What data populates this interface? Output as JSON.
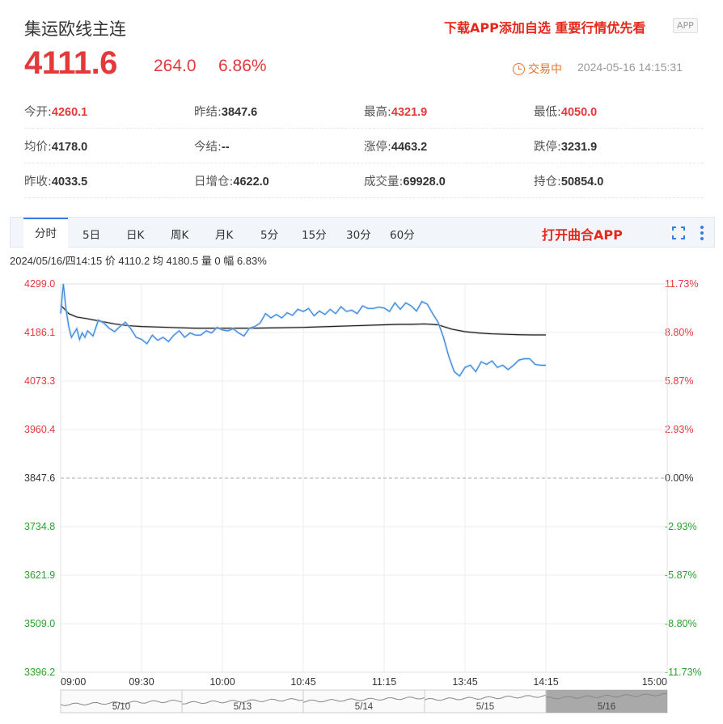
{
  "header": {
    "title": "集运欧线主连",
    "promo": "下载APP添加自选 重要行情优先看",
    "app_badge": "APP"
  },
  "quote": {
    "price": "4111.6",
    "change": "264.0",
    "change_pct": "6.86%",
    "status": "交易中",
    "timestamp": "2024-05-16 14:15:31"
  },
  "stats": [
    [
      {
        "label": "今开:",
        "value": "4260.1",
        "color": "red"
      },
      {
        "label": "昨结:",
        "value": "3847.6",
        "color": "normal"
      },
      {
        "label": "最高:",
        "value": "4321.9",
        "color": "red"
      },
      {
        "label": "最低:",
        "value": "4050.0",
        "color": "red"
      }
    ],
    [
      {
        "label": "均价:",
        "value": "4178.0",
        "color": "normal"
      },
      {
        "label": "今结:",
        "value": "--",
        "color": "normal"
      },
      {
        "label": "涨停:",
        "value": "4463.2",
        "color": "normal"
      },
      {
        "label": "跌停:",
        "value": "3231.9",
        "color": "normal"
      }
    ],
    [
      {
        "label": "昨收:",
        "value": "4033.5",
        "color": "normal"
      },
      {
        "label": "日增仓:",
        "value": "4622.0",
        "color": "normal"
      },
      {
        "label": "成交量:",
        "value": "69928.0",
        "color": "normal"
      },
      {
        "label": "持仓:",
        "value": "50854.0",
        "color": "normal"
      }
    ]
  ],
  "tabs": [
    "分时",
    "5日",
    "日K",
    "周K",
    "月K",
    "5分",
    "15分",
    "30分",
    "60分"
  ],
  "toolbar": {
    "open_app": "打开曲合APP",
    "fullscreen_icon": "fullscreen-icon",
    "more_icon": "more-vertical-icon"
  },
  "info_line": "2024/05/16/四14:15  价 4110.2  均 4180.5  量 0  幅 6.83%",
  "colors": {
    "up": "#e4393c",
    "down": "#2ca02c",
    "price_line": "#3a87d9",
    "avg_line": "#222222",
    "accent": "#e4281b",
    "status": "#e5752e"
  },
  "chart_data": {
    "type": "line",
    "xlabel": "",
    "ylabel": "",
    "ylim": [
      3396.2,
      4299.0
    ],
    "prev_settle": 3847.6,
    "y_ticks_left": [
      "4299.0",
      "4186.1",
      "4073.3",
      "3960.4",
      "3847.6",
      "3734.8",
      "3621.9",
      "3509.0",
      "3396.2"
    ],
    "y_ticks_right": [
      "11.73%",
      "8.80%",
      "5.87%",
      "2.93%",
      "0.00%",
      "-2.93%",
      "-5.87%",
      "-8.80%",
      "-11.73%"
    ],
    "x_ticks": [
      "09:00",
      "09:30",
      "10:00",
      "10:45",
      "11:15",
      "13:45",
      "14:15",
      "15:00"
    ],
    "x_tick_minutes": [
      0,
      30,
      60,
      90,
      120,
      150,
      180,
      225
    ],
    "grid": true,
    "series": [
      {
        "key": "price",
        "x": [
          0,
          1,
          2,
          3,
          4,
          5,
          6,
          7,
          8,
          9,
          10,
          12,
          14,
          16,
          18,
          20,
          22,
          24,
          26,
          28,
          30,
          32,
          34,
          36,
          38,
          40,
          42,
          44,
          46,
          48,
          50,
          52,
          54,
          56,
          58,
          60,
          62,
          64,
          66,
          68,
          70,
          72,
          74,
          76,
          78,
          80,
          82,
          84,
          86,
          88,
          90,
          92,
          94,
          96,
          98,
          100,
          102,
          104,
          106,
          108,
          110,
          112,
          114,
          116,
          118,
          120,
          122,
          124,
          126,
          128,
          130,
          132,
          134,
          136,
          138,
          140,
          142,
          144,
          146,
          148,
          150,
          152,
          154,
          156,
          158,
          160,
          162,
          164,
          166,
          168,
          170,
          172,
          174,
          176,
          178,
          180
        ],
        "values": [
          4230,
          4299,
          4240,
          4200,
          4175,
          4185,
          4195,
          4170,
          4185,
          4175,
          4190,
          4178,
          4215,
          4208,
          4196,
          4188,
          4200,
          4210,
          4195,
          4175,
          4170,
          4160,
          4180,
          4168,
          4175,
          4165,
          4180,
          4190,
          4175,
          4185,
          4180,
          4180,
          4190,
          4185,
          4198,
          4192,
          4190,
          4195,
          4185,
          4178,
          4196,
          4200,
          4208,
          4230,
          4220,
          4228,
          4220,
          4232,
          4226,
          4240,
          4235,
          4242,
          4225,
          4236,
          4228,
          4240,
          4230,
          4246,
          4235,
          4238,
          4230,
          4248,
          4242,
          4242,
          4245,
          4243,
          4235,
          4255,
          4240,
          4255,
          4248,
          4236,
          4258,
          4252,
          4230,
          4210,
          4175,
          4130,
          4095,
          4085,
          4105,
          4110,
          4095,
          4118,
          4112,
          4120,
          4105,
          4110,
          4100,
          4110,
          4122,
          4125,
          4125,
          4112,
          4110,
          4110
        ]
      },
      {
        "key": "avg",
        "x": [
          0,
          3,
          6,
          10,
          15,
          20,
          25,
          30,
          40,
          50,
          60,
          70,
          80,
          90,
          100,
          110,
          120,
          125,
          130,
          135,
          140,
          142,
          145,
          150,
          155,
          160,
          165,
          170,
          175,
          180
        ],
        "values": [
          4250,
          4230,
          4222,
          4218,
          4212,
          4206,
          4202,
          4200,
          4198,
          4196,
          4196,
          4196,
          4197,
          4198,
          4200,
          4202,
          4204,
          4205,
          4205,
          4206,
          4204,
          4200,
          4194,
          4188,
          4185,
          4183,
          4182,
          4181,
          4180.5,
          4180.5
        ]
      }
    ],
    "overview": {
      "day_labels": [
        "5/10",
        "5/13",
        "5/14",
        "5/15",
        "5/16"
      ]
    }
  }
}
